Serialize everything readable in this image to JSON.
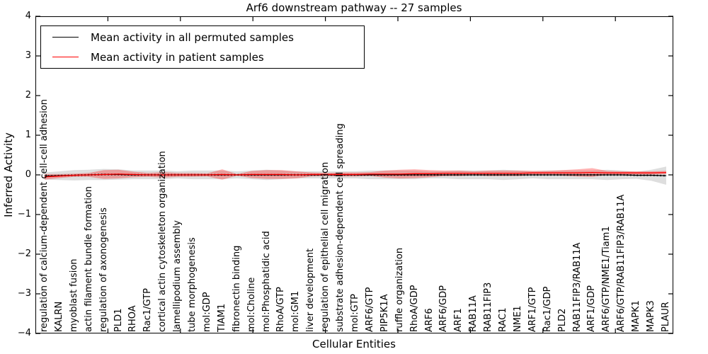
{
  "title": "Arf6 downstream pathway -- 27 samples",
  "legend": {
    "items": [
      {
        "label": "Mean activity in all permuted samples",
        "color": "#000000"
      },
      {
        "label": "Mean activity in patient samples",
        "color": "#ff0000"
      }
    ]
  },
  "axes": {
    "ylabel": "Inferred Activity",
    "xlabel": "Cellular Entities",
    "ytick_labels": [
      "4",
      "3",
      "2",
      "1",
      "0",
      "−1",
      "−2",
      "−3",
      "−4"
    ]
  },
  "chart_data": {
    "type": "line",
    "title": "Arf6 downstream pathway -- 27 samples",
    "xlabel": "Cellular Entities",
    "ylabel": "Inferred Activity",
    "ylim": [
      -4,
      4
    ],
    "grid": false,
    "legend_position": "upper left",
    "entities": [
      "regulation of calcium-dependent cell-cell adhesion",
      "KALRN",
      "myoblast fusion",
      "actin filament bundle formation",
      "regulation of axonogenesis",
      "PLD1",
      "RHOA",
      "Rac1/GTP",
      "cortical actin cytoskeleton organization",
      "lamellipodium assembly",
      "tube morphogenesis",
      "mol:GDP",
      "TIAM1",
      "fibronectin binding",
      "mol:Choline",
      "mol:Phosphatidic acid",
      "RhoA/GTP",
      "mol:GM1",
      "liver development",
      "regulation of epithelial cell migration",
      "substrate adhesion-dependent cell spreading",
      "mol:GTP",
      "ARF6/GTP",
      "PIP5K1A",
      "ruffle organization",
      "RhoA/GDP",
      "ARF6",
      "ARF6/GDP",
      "ARF1",
      "RAB11A",
      "RAB11FIP3",
      "RAC1",
      "NME1",
      "ARF1/GTP",
      "Rac1/GDP",
      "PLD2",
      "RAB11FIP3/RAB11A",
      "ARF1/GDP",
      "ARF6/GTP/NME1/Tiam1",
      "ARF6/GTP/RAB11FIP3/RAB11A",
      "MAPK1",
      "MAPK3",
      "PLAUR"
    ],
    "series": [
      {
        "name": "Mean activity in all permuted samples",
        "color": "#000000",
        "band_color": "#000000",
        "mean": [
          -0.03,
          -0.02,
          -0.01,
          0.0,
          0.01,
          0.01,
          0.0,
          0.0,
          0.0,
          0.0,
          0.0,
          0.0,
          0.0,
          0.0,
          0.0,
          0.0,
          0.0,
          0.0,
          0.0,
          0.0,
          0.0,
          0.0,
          0.0,
          0.0,
          0.0,
          0.0,
          0.0,
          0.0,
          0.0,
          0.0,
          0.0,
          0.0,
          0.0,
          0.0,
          0.0,
          0.0,
          0.0,
          0.0,
          0.0,
          0.0,
          -0.01,
          -0.01,
          -0.02
        ],
        "std": [
          0.09,
          0.11,
          0.13,
          0.13,
          0.14,
          0.13,
          0.11,
          0.11,
          0.11,
          0.09,
          0.11,
          0.11,
          0.11,
          0.09,
          0.11,
          0.13,
          0.11,
          0.09,
          0.09,
          0.09,
          0.09,
          0.09,
          0.11,
          0.11,
          0.11,
          0.11,
          0.09,
          0.09,
          0.11,
          0.11,
          0.11,
          0.13,
          0.11,
          0.09,
          0.11,
          0.11,
          0.11,
          0.11,
          0.13,
          0.11,
          0.09,
          0.14,
          0.23
        ]
      },
      {
        "name": "Mean activity in patient samples",
        "color": "#ff0000",
        "band_color": "#ff0000",
        "mean": [
          -0.05,
          -0.03,
          -0.01,
          0.0,
          0.01,
          0.02,
          0.01,
          0.0,
          0.0,
          0.0,
          0.0,
          0.0,
          0.01,
          0.0,
          0.01,
          0.01,
          0.01,
          0.0,
          0.01,
          0.01,
          0.01,
          0.01,
          0.02,
          0.02,
          0.02,
          0.03,
          0.03,
          0.04,
          0.04,
          0.04,
          0.04,
          0.04,
          0.04,
          0.05,
          0.05,
          0.05,
          0.05,
          0.06,
          0.05,
          0.05,
          0.05,
          0.05,
          0.06
        ],
        "std": [
          0.07,
          0.05,
          0.04,
          0.05,
          0.11,
          0.11,
          0.07,
          0.05,
          0.07,
          0.05,
          0.05,
          0.04,
          0.13,
          0.02,
          0.09,
          0.11,
          0.11,
          0.09,
          0.05,
          0.04,
          0.05,
          0.05,
          0.05,
          0.09,
          0.11,
          0.11,
          0.09,
          0.07,
          0.07,
          0.05,
          0.07,
          0.07,
          0.07,
          0.05,
          0.05,
          0.07,
          0.09,
          0.11,
          0.05,
          0.04,
          0.04,
          0.04,
          0.04
        ]
      }
    ]
  }
}
